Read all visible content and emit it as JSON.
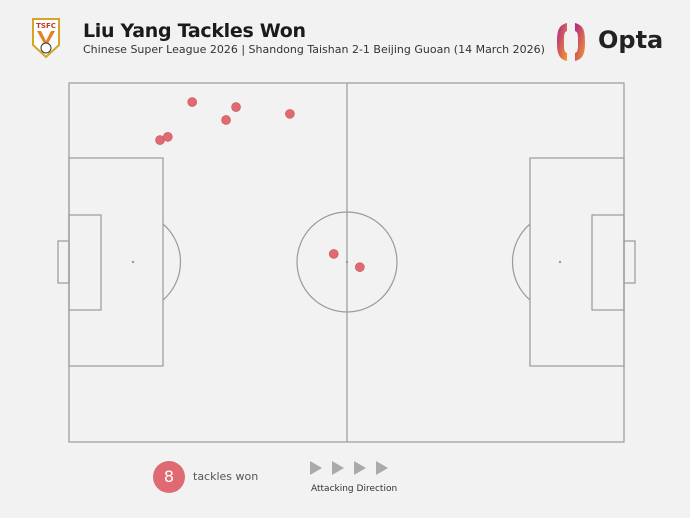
{
  "header": {
    "title": "Liu Yang Tackles Won",
    "subtitle": "Chinese Super League 2026 | Shandong Taishan 2-1 Beijing Guoan (14 March 2026)",
    "club_badge_text": "TSFC",
    "brand": "Opta"
  },
  "legend": {
    "count": "8",
    "label": "tackles won",
    "direction_label": "Attacking Direction"
  },
  "colors": {
    "tackle": "#e06a72",
    "pitch_line": "#9a9a9a",
    "arrow": "#aaaaaa",
    "background": "#f2f2f2"
  },
  "chart_data": {
    "type": "scatter",
    "title": "Liu Yang Tackles Won",
    "coordinate_system": "Opta pitch 0-100, attacking left to right",
    "xlim": [
      0,
      100
    ],
    "ylim": [
      0,
      100
    ],
    "points": [
      {
        "x": 22.2,
        "y": 94.7
      },
      {
        "x": 30.1,
        "y": 93.3
      },
      {
        "x": 28.3,
        "y": 89.7
      },
      {
        "x": 39.8,
        "y": 91.4
      },
      {
        "x": 16.4,
        "y": 84.1
      },
      {
        "x": 17.8,
        "y": 85.0
      },
      {
        "x": 47.7,
        "y": 52.4
      },
      {
        "x": 52.4,
        "y": 48.7
      }
    ]
  }
}
